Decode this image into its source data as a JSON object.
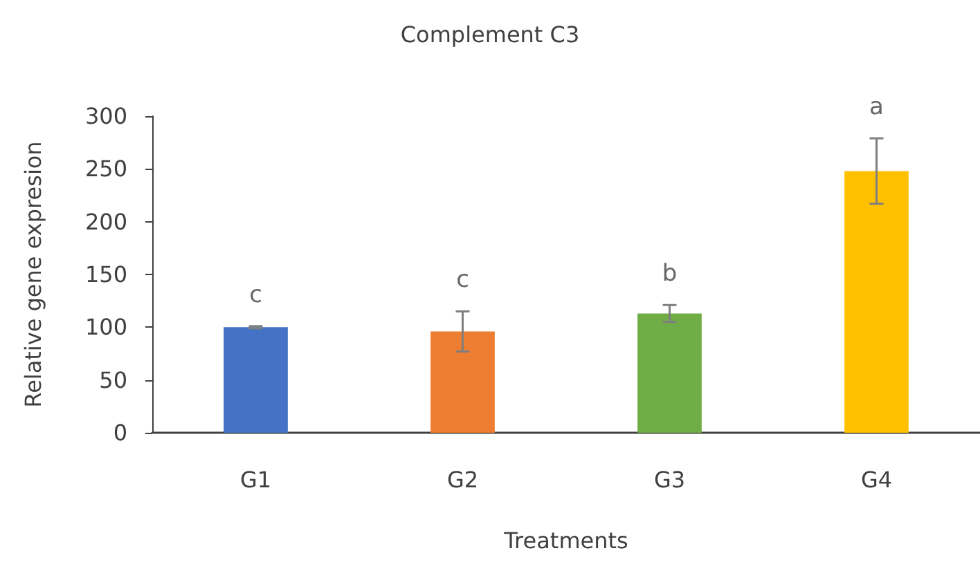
{
  "chart_data": {
    "type": "bar",
    "title": "Complement C3",
    "xlabel": "Treatments",
    "ylabel": "Relative gene expresion",
    "categories": [
      "G1",
      "G2",
      "G3",
      "G4"
    ],
    "values": [
      100,
      96,
      113,
      248
    ],
    "colors": [
      "#4472c4",
      "#ed7d31",
      "#70ad47",
      "#ffc000"
    ],
    "errors": [
      1,
      19,
      8,
      31
    ],
    "ylim": [
      0,
      300
    ],
    "yticks": [
      0,
      50,
      100,
      150,
      200,
      250,
      300
    ],
    "grid": false,
    "annotations": [
      {
        "text": "c",
        "x": "G1",
        "y": 101
      },
      {
        "text": "c",
        "x": "G2",
        "y": 115
      },
      {
        "text": "b",
        "x": "G3",
        "y": 121
      },
      {
        "text": "a",
        "x": "G4",
        "y": 279
      }
    ]
  }
}
